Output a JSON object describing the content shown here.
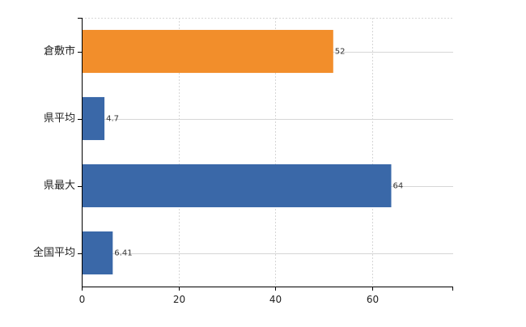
{
  "chart_data": {
    "type": "bar",
    "orientation": "horizontal",
    "title": "",
    "xlabel": "",
    "ylabel": "",
    "categories": [
      "倉敷市",
      "県平均",
      "県最大",
      "全国平均"
    ],
    "values": [
      52,
      4.7,
      64,
      6.41
    ],
    "value_labels": [
      "52",
      "4.7",
      "64",
      "6.41"
    ],
    "bar_colors": [
      "#f28e2b",
      "#3a68a8",
      "#3a68a8",
      "#3a68a8"
    ],
    "xlim": [
      0,
      76.8
    ],
    "x_ticks": [
      0,
      20,
      40,
      60
    ],
    "x_tick_labels": [
      "0",
      "20",
      "40",
      "60"
    ],
    "grid": true,
    "legend": "none"
  }
}
